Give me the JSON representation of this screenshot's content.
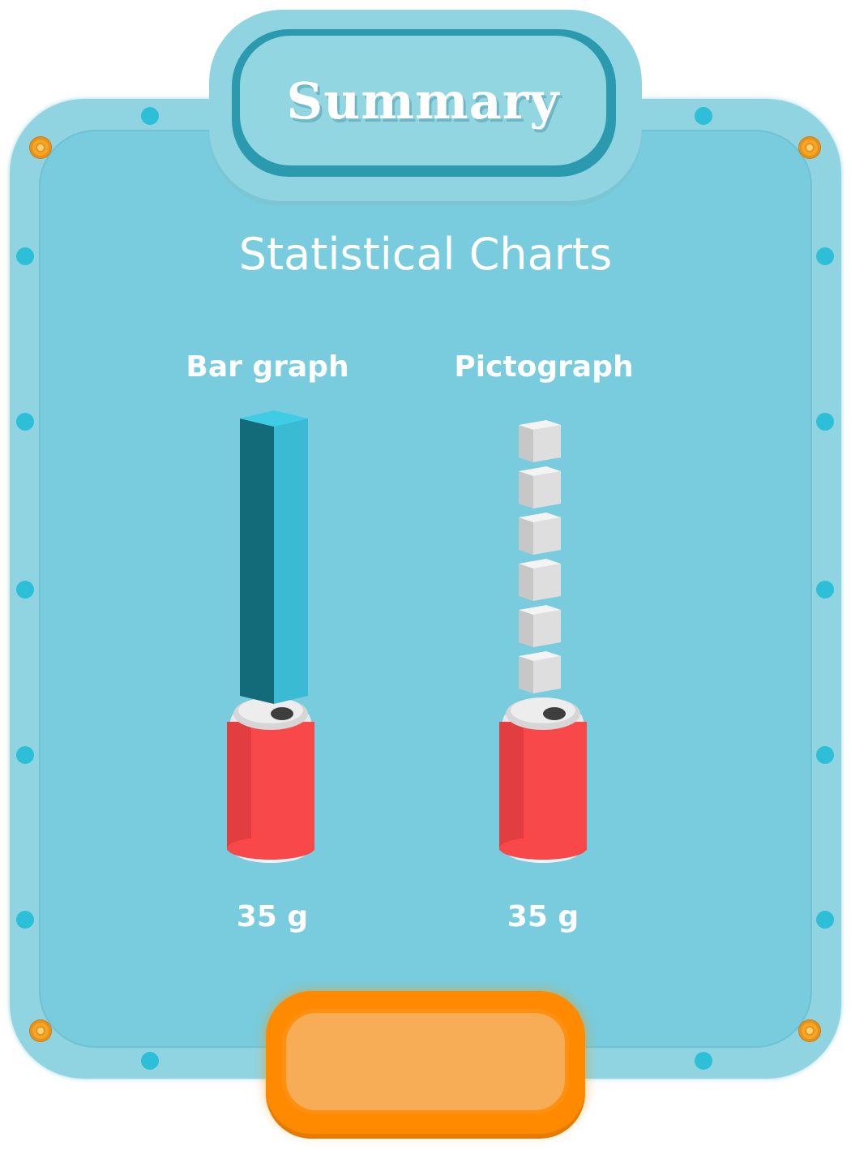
{
  "title": "Summary",
  "heading": "Statistical Charts",
  "colors": {
    "frame": "#8fd4e0",
    "panel": "#78ccdd",
    "bar_front": "#3bbad3",
    "bar_side": "#136b7a",
    "can_red": "#f8484a",
    "button": "#ff8a00"
  },
  "chart_data": [
    {
      "type": "bar",
      "title": "Bar graph",
      "categories": [
        "35 g"
      ],
      "values": [
        35
      ]
    },
    {
      "type": "pictograph",
      "title": "Pictograph",
      "categories": [
        "35 g"
      ],
      "icon": "sugar-cube-icon",
      "icon_count": 6,
      "values": [
        35
      ]
    }
  ],
  "button": {
    "label": ""
  }
}
